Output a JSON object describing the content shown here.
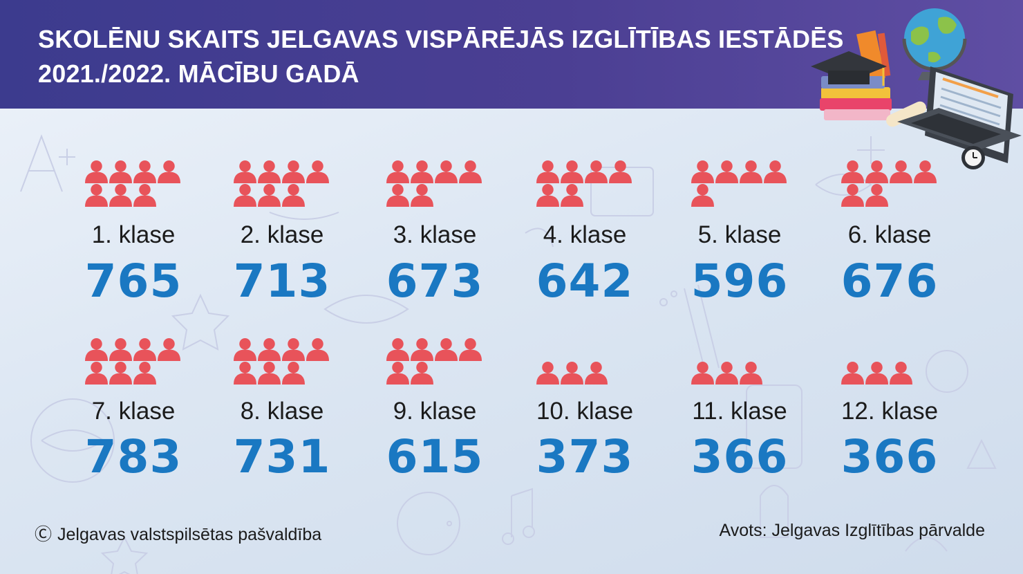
{
  "header": {
    "title_line1": "SKOLĒNU SKAITS JELGAVAS VISPĀRĒJĀS IZGLĪTĪBAS IESTĀDĒS",
    "title_line2": "2021./2022. MĀCĪBU GADĀ"
  },
  "colors": {
    "header": "#3f3c8f",
    "accent_number": "#1a78c2",
    "person_icon": "#e8535a"
  },
  "icons": [
    "people-group-icon",
    "education-illustration-icon",
    "copyright-icon"
  ],
  "grades": [
    {
      "label": "1. klase",
      "value": "765"
    },
    {
      "label": "2. klase",
      "value": "713"
    },
    {
      "label": "3. klase",
      "value": "673"
    },
    {
      "label": "4. klase",
      "value": "642"
    },
    {
      "label": "5. klase",
      "value": "596"
    },
    {
      "label": "6. klase",
      "value": "676"
    },
    {
      "label": "7. klase",
      "value": "783"
    },
    {
      "label": "8. klase",
      "value": "731"
    },
    {
      "label": "9. klase",
      "value": "615"
    },
    {
      "label": "10. klase",
      "value": "373"
    },
    {
      "label": "11. klase",
      "value": "366"
    },
    {
      "label": "12. klase",
      "value": "366"
    }
  ],
  "footer": {
    "copyright_symbol": "Ⓒ",
    "copyright": "Jelgavas valstspilsētas pašvaldība",
    "source": "Avots: Jelgavas Izglītības pārvalde"
  }
}
